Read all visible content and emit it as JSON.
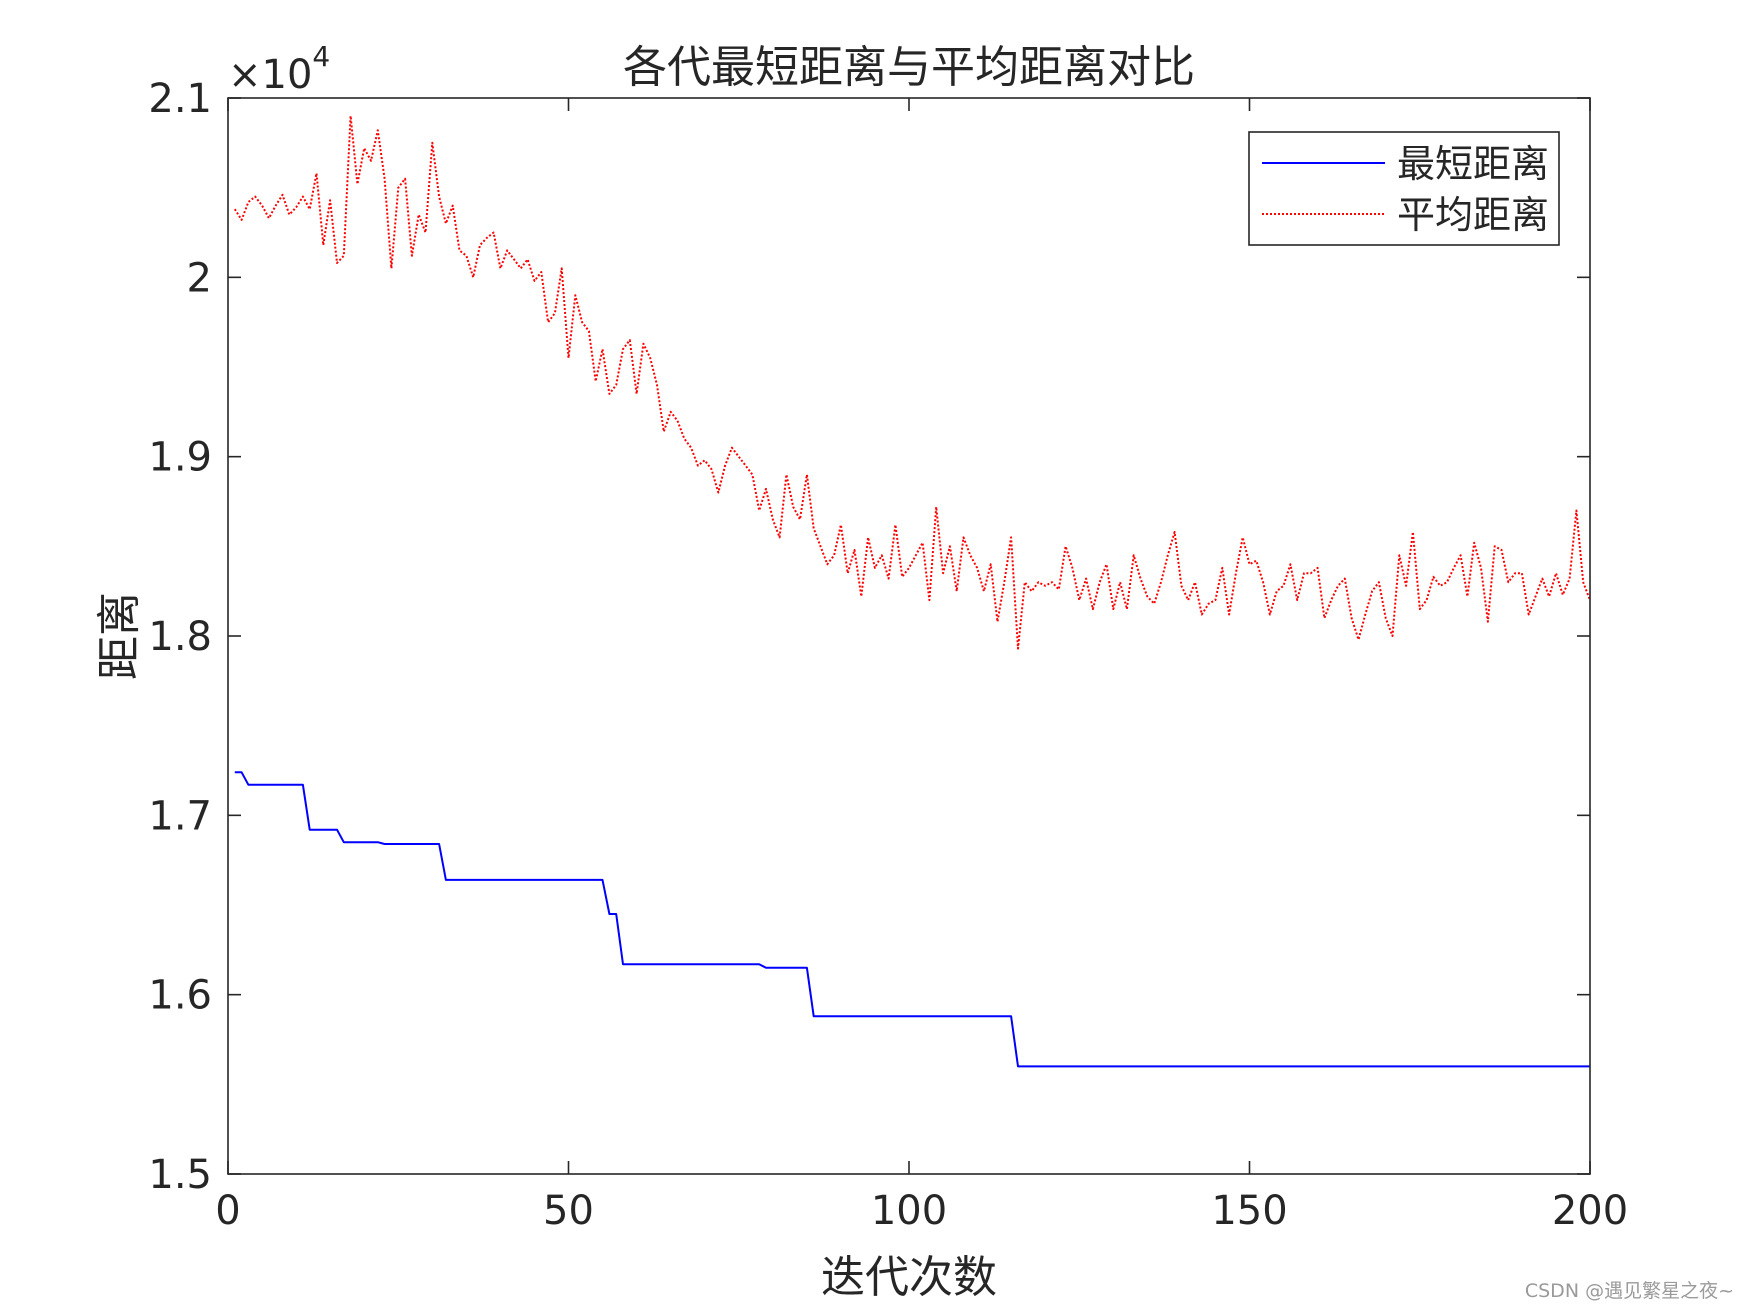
{
  "chart_data": {
    "type": "line",
    "title": "各代最短距离与平均距离对比",
    "xlabel": "迭代次数",
    "ylabel": "距离",
    "y_multiplier": "×10",
    "y_exponent": "4",
    "xlim": [
      0,
      200
    ],
    "ylim": [
      1.5,
      2.1
    ],
    "x_ticks": [
      0,
      50,
      100,
      150,
      200
    ],
    "x_tick_labels": [
      "0",
      "50",
      "100",
      "150",
      "200"
    ],
    "y_ticks": [
      1.5,
      1.6,
      1.7,
      1.8,
      1.9,
      2.0,
      2.1
    ],
    "y_tick_labels": [
      "1.5",
      "1.6",
      "1.7",
      "1.8",
      "1.9",
      "2",
      "2.1"
    ],
    "legend_position": "top-right",
    "series": [
      {
        "name": "最短距离",
        "color": "#0000ff",
        "style": "solid",
        "points": [
          [
            1,
            1.724
          ],
          [
            2,
            1.724
          ],
          [
            3,
            1.717
          ],
          [
            11,
            1.717
          ],
          [
            12,
            1.692
          ],
          [
            16,
            1.692
          ],
          [
            17,
            1.685
          ],
          [
            22,
            1.685
          ],
          [
            23,
            1.684
          ],
          [
            31,
            1.684
          ],
          [
            32,
            1.664
          ],
          [
            55,
            1.664
          ],
          [
            56,
            1.645
          ],
          [
            57,
            1.645
          ],
          [
            58,
            1.617
          ],
          [
            78,
            1.617
          ],
          [
            79,
            1.615
          ],
          [
            85,
            1.615
          ],
          [
            86,
            1.588
          ],
          [
            115,
            1.588
          ],
          [
            116,
            1.56
          ],
          [
            200,
            1.56
          ]
        ]
      },
      {
        "name": "平均距离",
        "color": "#ff0000",
        "style": "dotted",
        "points": [
          [
            1,
            2.038
          ],
          [
            2,
            2.032
          ],
          [
            3,
            2.042
          ],
          [
            4,
            2.045
          ],
          [
            5,
            2.04
          ],
          [
            6,
            2.033
          ],
          [
            7,
            2.04
          ],
          [
            8,
            2.046
          ],
          [
            9,
            2.035
          ],
          [
            10,
            2.039
          ],
          [
            11,
            2.045
          ],
          [
            12,
            2.038
          ],
          [
            13,
            2.058
          ],
          [
            14,
            2.018
          ],
          [
            15,
            2.043
          ],
          [
            16,
            2.008
          ],
          [
            17,
            2.012
          ],
          [
            18,
            2.09
          ],
          [
            19,
            2.052
          ],
          [
            20,
            2.072
          ],
          [
            21,
            2.065
          ],
          [
            22,
            2.082
          ],
          [
            23,
            2.055
          ],
          [
            24,
            2.005
          ],
          [
            25,
            2.05
          ],
          [
            26,
            2.055
          ],
          [
            27,
            2.012
          ],
          [
            28,
            2.035
          ],
          [
            29,
            2.025
          ],
          [
            30,
            2.075
          ],
          [
            31,
            2.045
          ],
          [
            32,
            2.03
          ],
          [
            33,
            2.04
          ],
          [
            34,
            2.015
          ],
          [
            35,
            2.012
          ],
          [
            36,
            2.0
          ],
          [
            37,
            2.018
          ],
          [
            38,
            2.022
          ],
          [
            39,
            2.025
          ],
          [
            40,
            2.005
          ],
          [
            41,
            2.015
          ],
          [
            42,
            2.01
          ],
          [
            43,
            2.005
          ],
          [
            44,
            2.01
          ],
          [
            45,
            1.998
          ],
          [
            46,
            2.003
          ],
          [
            47,
            1.975
          ],
          [
            48,
            1.98
          ],
          [
            49,
            2.005
          ],
          [
            50,
            1.955
          ],
          [
            51,
            1.99
          ],
          [
            52,
            1.975
          ],
          [
            53,
            1.97
          ],
          [
            54,
            1.942
          ],
          [
            55,
            1.96
          ],
          [
            56,
            1.935
          ],
          [
            57,
            1.94
          ],
          [
            58,
            1.96
          ],
          [
            59,
            1.965
          ],
          [
            60,
            1.935
          ],
          [
            61,
            1.963
          ],
          [
            62,
            1.955
          ],
          [
            63,
            1.94
          ],
          [
            64,
            1.914
          ],
          [
            65,
            1.925
          ],
          [
            66,
            1.92
          ],
          [
            67,
            1.91
          ],
          [
            68,
            1.905
          ],
          [
            69,
            1.895
          ],
          [
            70,
            1.898
          ],
          [
            71,
            1.893
          ],
          [
            72,
            1.88
          ],
          [
            73,
            1.895
          ],
          [
            74,
            1.905
          ],
          [
            75,
            1.9
          ],
          [
            76,
            1.895
          ],
          [
            77,
            1.89
          ],
          [
            78,
            1.87
          ],
          [
            79,
            1.882
          ],
          [
            80,
            1.865
          ],
          [
            81,
            1.855
          ],
          [
            82,
            1.89
          ],
          [
            83,
            1.872
          ],
          [
            84,
            1.865
          ],
          [
            85,
            1.89
          ],
          [
            86,
            1.86
          ],
          [
            87,
            1.85
          ],
          [
            88,
            1.84
          ],
          [
            89,
            1.845
          ],
          [
            90,
            1.862
          ],
          [
            91,
            1.835
          ],
          [
            92,
            1.848
          ],
          [
            93,
            1.822
          ],
          [
            94,
            1.855
          ],
          [
            95,
            1.838
          ],
          [
            96,
            1.845
          ],
          [
            97,
            1.832
          ],
          [
            98,
            1.862
          ],
          [
            99,
            1.833
          ],
          [
            100,
            1.838
          ],
          [
            101,
            1.845
          ],
          [
            102,
            1.852
          ],
          [
            103,
            1.82
          ],
          [
            104,
            1.872
          ],
          [
            105,
            1.835
          ],
          [
            106,
            1.85
          ],
          [
            107,
            1.825
          ],
          [
            108,
            1.855
          ],
          [
            109,
            1.845
          ],
          [
            110,
            1.838
          ],
          [
            111,
            1.825
          ],
          [
            112,
            1.84
          ],
          [
            113,
            1.808
          ],
          [
            114,
            1.83
          ],
          [
            115,
            1.855
          ],
          [
            116,
            1.793
          ],
          [
            117,
            1.83
          ],
          [
            118,
            1.825
          ],
          [
            119,
            1.83
          ],
          [
            120,
            1.828
          ],
          [
            121,
            1.83
          ],
          [
            122,
            1.826
          ],
          [
            123,
            1.85
          ],
          [
            124,
            1.838
          ],
          [
            125,
            1.82
          ],
          [
            126,
            1.832
          ],
          [
            127,
            1.815
          ],
          [
            128,
            1.83
          ],
          [
            129,
            1.84
          ],
          [
            130,
            1.815
          ],
          [
            131,
            1.83
          ],
          [
            132,
            1.815
          ],
          [
            133,
            1.845
          ],
          [
            134,
            1.832
          ],
          [
            135,
            1.822
          ],
          [
            136,
            1.818
          ],
          [
            137,
            1.83
          ],
          [
            138,
            1.845
          ],
          [
            139,
            1.858
          ],
          [
            140,
            1.828
          ],
          [
            141,
            1.82
          ],
          [
            142,
            1.83
          ],
          [
            143,
            1.812
          ],
          [
            144,
            1.818
          ],
          [
            145,
            1.82
          ],
          [
            146,
            1.838
          ],
          [
            147,
            1.812
          ],
          [
            148,
            1.835
          ],
          [
            149,
            1.855
          ],
          [
            150,
            1.84
          ],
          [
            151,
            1.842
          ],
          [
            152,
            1.83
          ],
          [
            153,
            1.812
          ],
          [
            154,
            1.825
          ],
          [
            155,
            1.828
          ],
          [
            156,
            1.84
          ],
          [
            157,
            1.82
          ],
          [
            158,
            1.835
          ],
          [
            159,
            1.835
          ],
          [
            160,
            1.838
          ],
          [
            161,
            1.81
          ],
          [
            162,
            1.82
          ],
          [
            163,
            1.828
          ],
          [
            164,
            1.832
          ],
          [
            165,
            1.81
          ],
          [
            166,
            1.798
          ],
          [
            167,
            1.812
          ],
          [
            168,
            1.825
          ],
          [
            169,
            1.83
          ],
          [
            170,
            1.81
          ],
          [
            171,
            1.8
          ],
          [
            172,
            1.845
          ],
          [
            173,
            1.828
          ],
          [
            174,
            1.858
          ],
          [
            175,
            1.815
          ],
          [
            176,
            1.82
          ],
          [
            177,
            1.833
          ],
          [
            178,
            1.828
          ],
          [
            179,
            1.83
          ],
          [
            180,
            1.838
          ],
          [
            181,
            1.845
          ],
          [
            182,
            1.822
          ],
          [
            183,
            1.852
          ],
          [
            184,
            1.838
          ],
          [
            185,
            1.808
          ],
          [
            186,
            1.85
          ],
          [
            187,
            1.848
          ],
          [
            188,
            1.83
          ],
          [
            189,
            1.835
          ],
          [
            190,
            1.835
          ],
          [
            191,
            1.812
          ],
          [
            192,
            1.822
          ],
          [
            193,
            1.832
          ],
          [
            194,
            1.822
          ],
          [
            195,
            1.835
          ],
          [
            196,
            1.823
          ],
          [
            197,
            1.832
          ],
          [
            198,
            1.87
          ],
          [
            199,
            1.83
          ],
          [
            200,
            1.82
          ]
        ]
      }
    ]
  },
  "watermark": "CSDN @遇见繁星之夜~"
}
